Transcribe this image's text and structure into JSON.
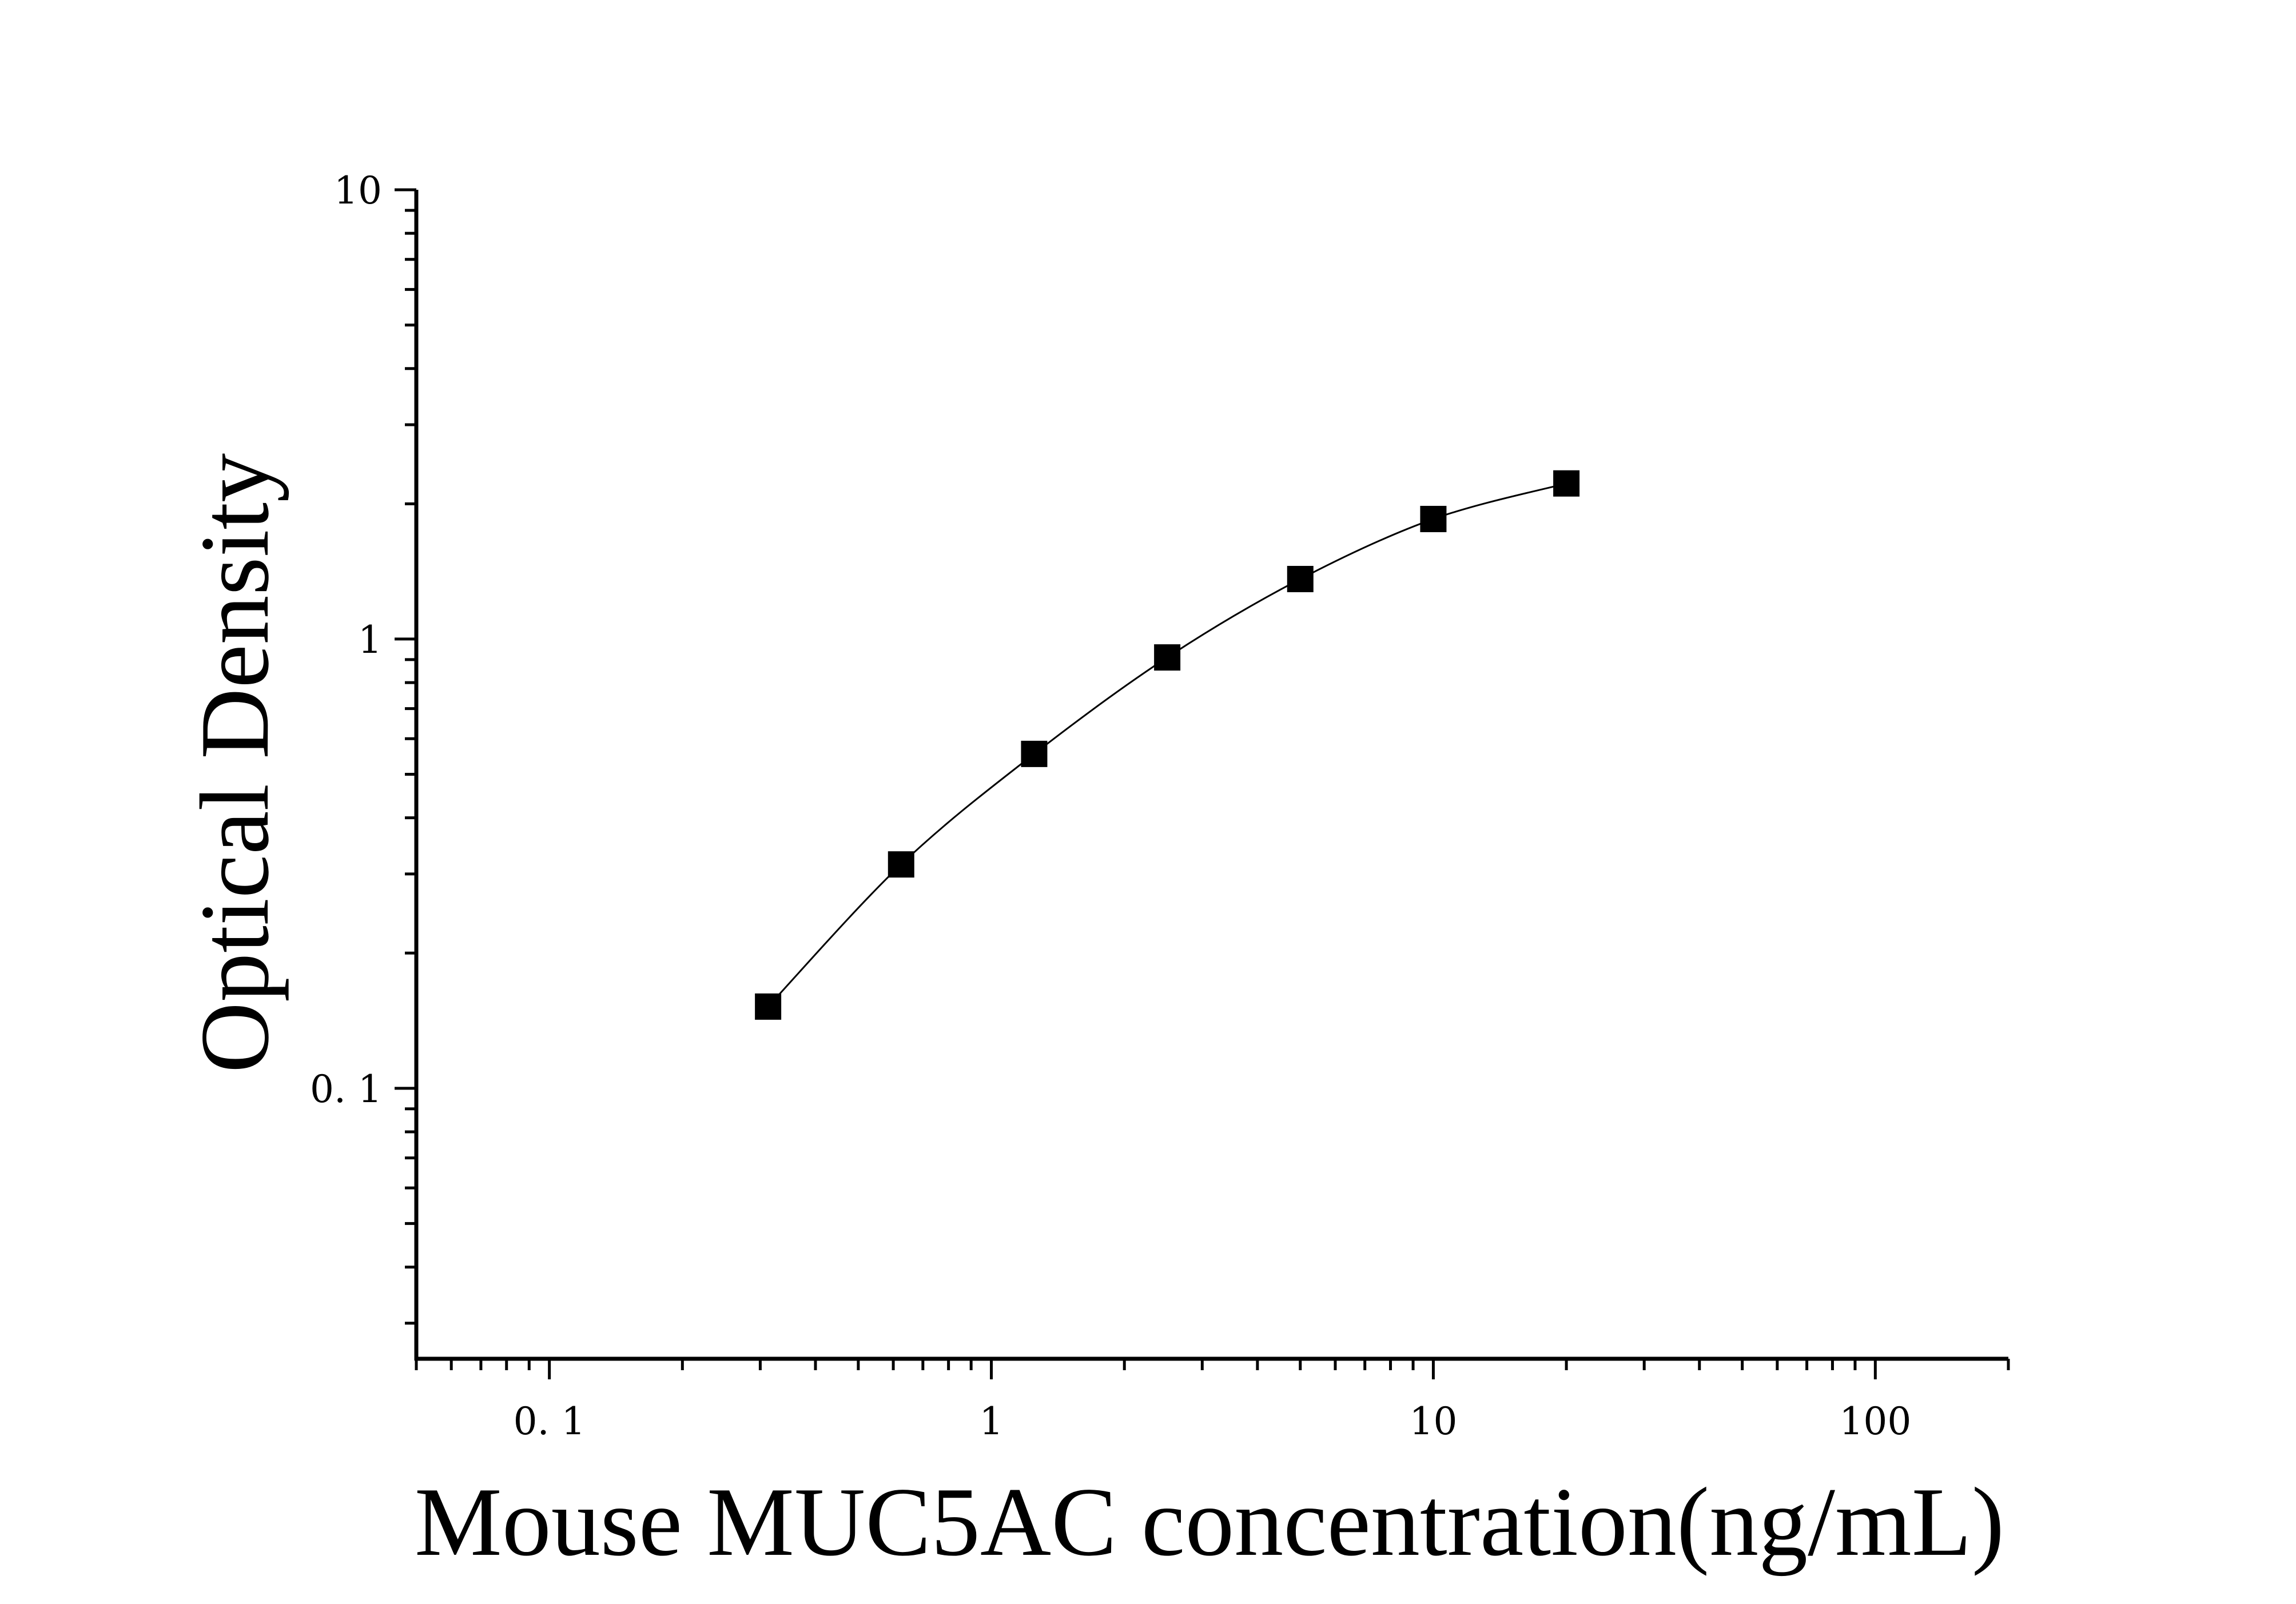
{
  "chart_data": {
    "type": "scatter",
    "title": "",
    "xlabel": "Mouse MUC5AC concentration(ng/mL)",
    "ylabel": "Optical Density",
    "x_scale": "log",
    "y_scale": "log",
    "xlim": [
      0.05,
      200
    ],
    "ylim": [
      0.025,
      10
    ],
    "x_ticks": [
      {
        "value": 0.1,
        "label": "0. 1"
      },
      {
        "value": 1,
        "label": "1"
      },
      {
        "value": 10,
        "label": "10"
      },
      {
        "value": 100,
        "label": "100"
      }
    ],
    "y_ticks": [
      {
        "value": 0.1,
        "label": "0. 1"
      },
      {
        "value": 1,
        "label": "1"
      },
      {
        "value": 10,
        "label": "10"
      }
    ],
    "grid": false,
    "legend": "none",
    "series": [
      {
        "marker": "square",
        "color": "#000000",
        "x": [
          0.3125,
          0.625,
          1.25,
          2.5,
          5,
          10,
          20
        ],
        "y": [
          0.152,
          0.315,
          0.555,
          0.91,
          1.36,
          1.85,
          2.22
        ],
        "fit_line": true
      }
    ]
  }
}
